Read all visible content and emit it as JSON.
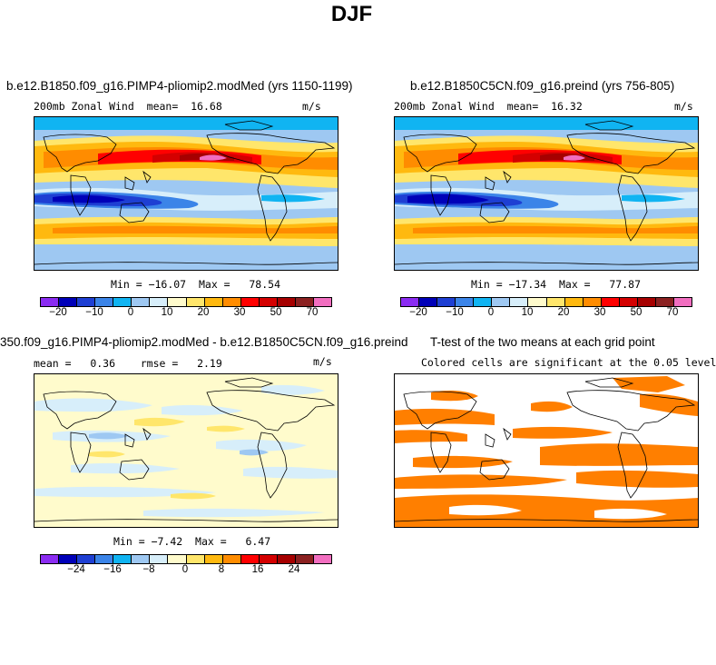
{
  "page": {
    "title": "DJF"
  },
  "colorbars": {
    "main": [
      "#8b2cf2",
      "#0000b8",
      "#1e3fd3",
      "#3b84e8",
      "#10b4f2",
      "#9ec8f2",
      "#d7eefa",
      "#fffbcc",
      "#ffe66b",
      "#ffb90f",
      "#ff8c00",
      "#ff0000",
      "#d40000",
      "#a60000",
      "#8b2121",
      "#f26ec0"
    ],
    "diff": [
      "#8b2cf2",
      "#0000b8",
      "#1e3fd3",
      "#3b84e8",
      "#10b4f2",
      "#9ec8f2",
      "#d7eefa",
      "#fffbcc",
      "#ffe66b",
      "#ffb90f",
      "#ff8c00",
      "#ff0000",
      "#d40000",
      "#a60000",
      "#8b2121",
      "#f26ec0"
    ],
    "main_ticks": [
      "−20",
      "−10",
      "0",
      "10",
      "20",
      "30",
      "50",
      "70"
    ],
    "diff_ticks": [
      "−24",
      "−16",
      "−8",
      "0",
      "8",
      "16",
      "24"
    ]
  },
  "panels": {
    "p1": {
      "title": "b.e12.B1850.f09_g16.PIMP4-pliomip2.modMed (yrs 1150-1199)",
      "var": "200mb Zonal Wind",
      "mean_label": "mean=",
      "mean_value": "16.68",
      "units": "m/s",
      "min_label": "Min =",
      "min_value": "−16.07",
      "max_label": "Max =",
      "max_value": "78.54"
    },
    "p2": {
      "title": "b.e12.B1850C5CN.f09_g16.preind (yrs 756-805)",
      "var": "200mb Zonal Wind",
      "mean_label": "mean=",
      "mean_value": "16.32",
      "units": "m/s",
      "min_label": "Min =",
      "min_value": "−17.34",
      "max_label": "Max =",
      "max_value": "77.87"
    },
    "p3": {
      "title": "350.f09_g16.PIMP4-pliomip2.modMed - b.e12.B1850C5CN.f09_g16.preind",
      "mean_label": "mean =",
      "mean_value": "0.36",
      "rmse_label": "rmse =",
      "rmse_value": "2.19",
      "units": "m/s",
      "min_label": "Min =",
      "min_value": "−7.42",
      "max_label": "Max =",
      "max_value": "6.47"
    },
    "p4": {
      "title": "T-test of the two means at each grid point",
      "subtitle": "Colored cells are significant at the 0.05 level",
      "sig_color": "#ff7f00"
    }
  }
}
